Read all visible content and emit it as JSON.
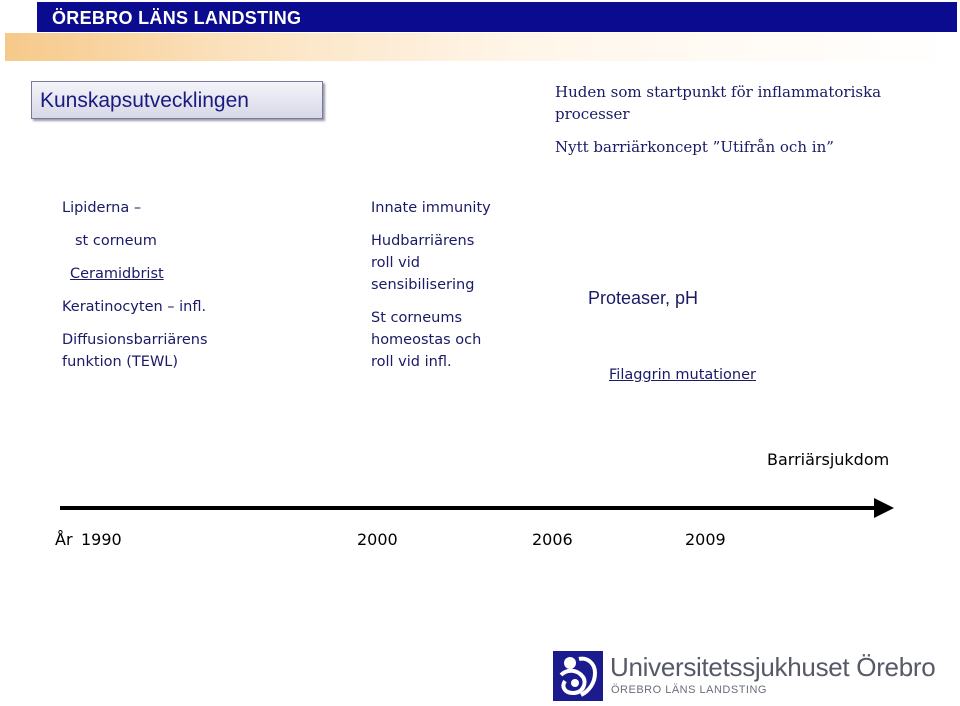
{
  "header": {
    "title": "ÖREBRO LÄNS LANDSTING"
  },
  "topic_box": {
    "label": "Kunskapsutvecklingen"
  },
  "headline": {
    "line1": "Huden som startpunkt för inflammatoriska",
    "line2": "processer",
    "line3": "Nytt barriärkoncept ”Utifrån och in”"
  },
  "col1": {
    "lipiderna": "Lipiderna –",
    "st_corneum": "st corneum",
    "ceramidbrist": "Ceramidbrist",
    "keratinocyten": "Keratinocyten – infl.",
    "diffusion_line1": "Diffusionsbarriärens",
    "diffusion_line2": "funktion (TEWL)"
  },
  "col2": {
    "innate": "Innate immunity",
    "hud_line1": "Hudbarriärens",
    "hud_line2": "roll vid",
    "hud_line3": "sensibilisering",
    "st_line1": "St corneums",
    "st_line2": "homeostas och",
    "st_line3": "roll vid infl."
  },
  "col3": {
    "proteaser": "Proteaser, pH",
    "filaggrin": "Filaggrin mutationer"
  },
  "barriarsjukdom": "Barriärsjukdom",
  "timeline": {
    "year_label": "År",
    "years": [
      "1990",
      "2000",
      "2006",
      "2009"
    ]
  },
  "logo": {
    "icon": "landsting-logo-icon",
    "name": "Universitetssjukhuset Örebro",
    "sub": "ÖREBRO LÄNS LANDSTING"
  }
}
